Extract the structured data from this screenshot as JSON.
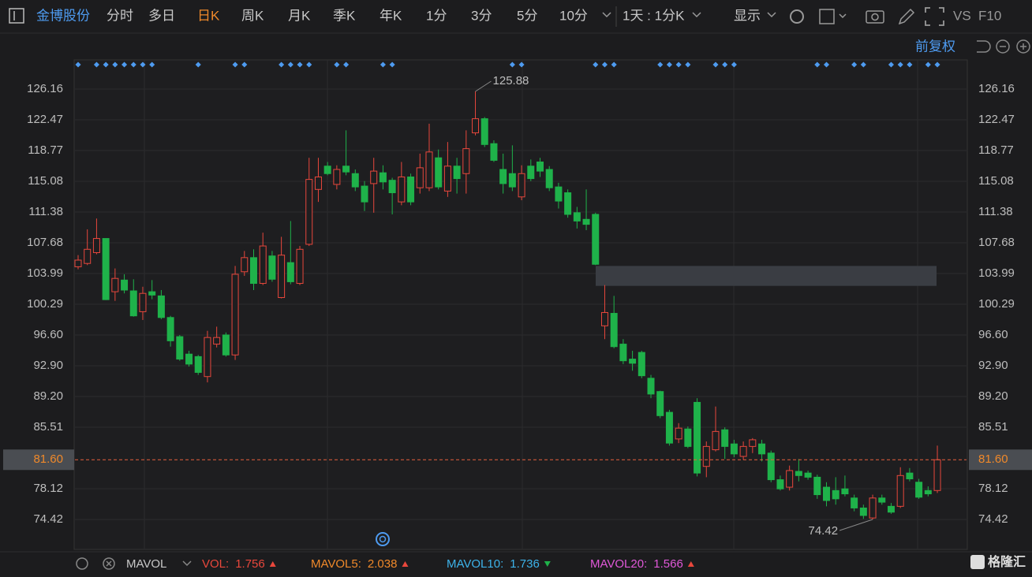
{
  "toolbar": {
    "stock": "金博股份",
    "tabs": [
      "分时",
      "多日",
      "日K",
      "周K",
      "月K",
      "季K",
      "年K",
      "1分",
      "3分",
      "5分",
      "10分"
    ],
    "active_tab": 2,
    "period": "1天 : 1分K",
    "display": "显示",
    "vs": "VS",
    "f10": "F10"
  },
  "adjust": "前复权",
  "chart_data": {
    "type": "candlestick",
    "ylim": [
      70.82,
      129.48
    ],
    "yticks": [
      126.16,
      122.47,
      118.77,
      115.08,
      111.38,
      107.68,
      103.99,
      100.29,
      {
        "value": 96.6,
        "label": "96.60"
      },
      {
        "value": 92.9,
        "label": "92.90"
      },
      {
        "value": 89.2,
        "label": "89.20"
      },
      85.51,
      78.12,
      74.42
    ],
    "grid": true,
    "up_color": "#e8473c",
    "down_color": "#1fb24a",
    "open": [
      104.8,
      105.2,
      106.5,
      108.2,
      101.8,
      103.2,
      101.9,
      99.4,
      101.8,
      101.3,
      98.7,
      96.4,
      94.3,
      94.0,
      91.6,
      95.5,
      96.6,
      94.2,
      104.2,
      105.9,
      102.8,
      106.1,
      101.1,
      105.3,
      102.8,
      107.5,
      114.1,
      116.9,
      114.7,
      116.9,
      116.0,
      114.5,
      114.8,
      116.1,
      115.2,
      112.6,
      115.6,
      114.3,
      114.3,
      117.9,
      113.9,
      116.9,
      116.0,
      120.9,
      122.6,
      119.6,
      116.5,
      116.0,
      113.2,
      116.9,
      117.4,
      116.5,
      114.4,
      113.7,
      111.3,
      110.5,
      111.1,
      97.7,
      99.2,
      95.5,
      93.7,
      94.5,
      91.4,
      89.8,
      87.3,
      84.1,
      85.3,
      88.5,
      80.8,
      82.8,
      85.2,
      83.5,
      82.0,
      83.2,
      83.5,
      82.4,
      79.2,
      78.3,
      80.2,
      80.0,
      79.5,
      78.3,
      77.9,
      78.1,
      77.0,
      75.8,
      74.6,
      77.0,
      76.0,
      76.0,
      80.0,
      78.9,
      77.9,
      77.9
    ],
    "high": [
      106.2,
      109.3,
      110.6,
      108.2,
      104.6,
      103.9,
      103.3,
      102.4,
      103.2,
      102.0,
      98.9,
      96.6,
      94.7,
      94.2,
      97.1,
      97.6,
      96.9,
      104.9,
      106.7,
      106.9,
      108.9,
      106.7,
      108.4,
      110.3,
      107.3,
      117.9,
      117.9,
      117.4,
      117.0,
      121.2,
      116.5,
      115.1,
      117.9,
      117.0,
      115.5,
      117.4,
      116.0,
      118.4,
      122.0,
      118.9,
      119.8,
      117.9,
      121.2,
      125.88,
      122.8,
      120.0,
      118.4,
      119.4,
      117.0,
      117.7,
      117.9,
      116.9,
      114.9,
      114.1,
      112.0,
      114.1,
      111.3,
      102.6,
      101.3,
      96.1,
      94.7,
      94.7,
      91.8,
      89.9,
      87.6,
      86.0,
      85.6,
      89.0,
      83.8,
      88.0,
      85.5,
      84.0,
      83.8,
      84.2,
      84.0,
      82.7,
      79.7,
      80.9,
      81.7,
      80.3,
      79.8,
      78.9,
      79.5,
      79.7,
      77.4,
      76.2,
      77.4,
      77.4,
      76.4,
      80.7,
      80.6,
      79.3,
      78.4,
      83.3
    ],
    "low": [
      104.5,
      105.0,
      106.3,
      100.8,
      100.7,
      101.6,
      98.8,
      98.4,
      100.9,
      98.5,
      95.2,
      93.5,
      92.8,
      91.8,
      90.9,
      95.1,
      94.0,
      93.6,
      103.7,
      102.0,
      102.6,
      103.0,
      101.0,
      102.7,
      102.6,
      107.3,
      112.6,
      115.8,
      114.1,
      115.8,
      113.9,
      111.5,
      111.3,
      114.1,
      111.1,
      112.2,
      112.2,
      113.6,
      113.9,
      114.1,
      113.2,
      113.6,
      113.6,
      120.6,
      119.2,
      117.4,
      113.6,
      113.9,
      112.8,
      115.1,
      115.6,
      113.9,
      111.8,
      110.7,
      109.4,
      109.2,
      105.0,
      96.1,
      95.0,
      93.1,
      92.3,
      91.4,
      89.0,
      86.6,
      83.3,
      83.6,
      83.0,
      79.6,
      79.5,
      82.6,
      81.7,
      81.9,
      81.6,
      82.4,
      81.4,
      78.9,
      77.9,
      77.9,
      79.0,
      79.2,
      76.9,
      76.0,
      76.2,
      77.2,
      75.4,
      74.5,
      74.42,
      76.2,
      75.1,
      75.8,
      79.0,
      76.9,
      77.2,
      77.6
    ],
    "close": [
      105.6,
      106.9,
      108.2,
      100.85,
      103.4,
      102.0,
      98.9,
      101.6,
      101.4,
      98.7,
      95.9,
      93.7,
      93.1,
      92.1,
      96.3,
      96.3,
      94.2,
      103.9,
      105.9,
      102.8,
      107.3,
      103.3,
      106.2,
      103.0,
      106.9,
      115.3,
      115.6,
      116.0,
      116.5,
      116.2,
      114.4,
      112.6,
      116.3,
      115.0,
      113.7,
      115.6,
      112.6,
      116.7,
      118.6,
      114.4,
      116.9,
      115.4,
      119.0,
      122.6,
      119.5,
      117.6,
      114.8,
      114.4,
      116.0,
      115.4,
      116.3,
      114.3,
      112.7,
      111.1,
      110.3,
      109.9,
      105.1,
      99.3,
      95.2,
      93.5,
      93.2,
      91.7,
      89.5,
      86.9,
      83.6,
      85.4,
      83.2,
      80.0,
      83.2,
      85.0,
      83.2,
      82.3,
      83.2,
      84.0,
      82.3,
      79.2,
      78.1,
      80.3,
      79.7,
      79.5,
      77.4,
      76.7,
      76.9,
      77.5,
      75.8,
      74.9,
      77.0,
      76.5,
      75.3,
      79.7,
      79.3,
      77.1,
      77.5,
      81.6
    ],
    "max_label": 125.88,
    "min_label": 74.42,
    "last_price": {
      "value": 81.6,
      "label": "81.60"
    },
    "gap": {
      "high": 104.9,
      "low": 102.5
    }
  },
  "indicator": {
    "name": "MAVOL",
    "items": [
      {
        "name": "VOL:",
        "value": 1.756,
        "trend": "up",
        "color": "#e8473c"
      },
      {
        "name": "MAVOL5:",
        "value": 2.038,
        "trend": "up",
        "color": "#f0892a"
      },
      {
        "name": "MAVOL10:",
        "value": 1.736,
        "trend": "down",
        "color": "#3db3ea"
      },
      {
        "name": "MAVOL20:",
        "value": 1.566,
        "trend": "up",
        "color": "#e058d8"
      }
    ]
  },
  "brand": "格隆汇"
}
